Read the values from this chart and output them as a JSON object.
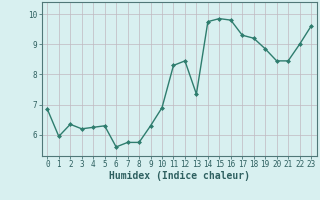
{
  "x": [
    0,
    1,
    2,
    3,
    4,
    5,
    6,
    7,
    8,
    9,
    10,
    11,
    12,
    13,
    14,
    15,
    16,
    17,
    18,
    19,
    20,
    21,
    22,
    23
  ],
  "y": [
    6.85,
    5.95,
    6.35,
    6.2,
    6.25,
    6.3,
    5.6,
    5.75,
    5.75,
    6.3,
    6.9,
    8.3,
    8.45,
    7.35,
    9.75,
    9.85,
    9.8,
    9.3,
    9.2,
    8.85,
    8.45,
    8.45,
    9.0,
    9.6
  ],
  "line_color": "#2e7d6e",
  "marker": "D",
  "markersize": 2.0,
  "linewidth": 1.0,
  "xlabel": "Humidex (Indice chaleur)",
  "xlabel_fontsize": 7,
  "ylim": [
    5.3,
    10.4
  ],
  "xlim": [
    -0.5,
    23.5
  ],
  "yticks": [
    6,
    7,
    8,
    9,
    10
  ],
  "xticks": [
    0,
    1,
    2,
    3,
    4,
    5,
    6,
    7,
    8,
    9,
    10,
    11,
    12,
    13,
    14,
    15,
    16,
    17,
    18,
    19,
    20,
    21,
    22,
    23
  ],
  "bg_color": "#d8f0f0",
  "grid_color": "#c0b8c0",
  "tick_fontsize": 5.5,
  "spine_color": "#507878"
}
